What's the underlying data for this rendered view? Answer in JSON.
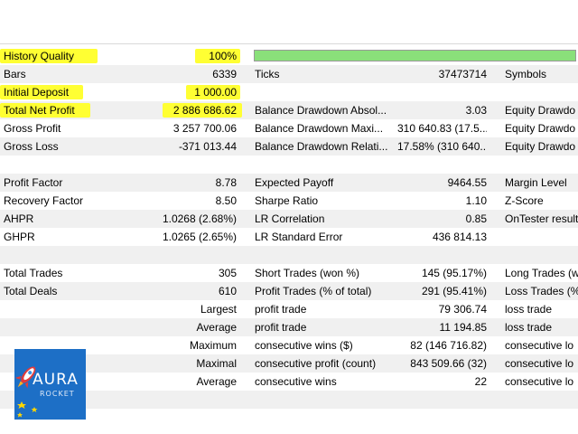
{
  "history_quality": {
    "label": "History Quality",
    "value": "100%",
    "progress_percent": 100
  },
  "rows": [
    {
      "c1": "Bars",
      "c2": "6339",
      "c3": "Ticks",
      "c4": "37473714",
      "c5": "Symbols"
    },
    {
      "c1": "Initial Deposit",
      "c2": "1 000.00",
      "c3": "",
      "c4": "",
      "c5": ""
    },
    {
      "c1": "Total Net Profit",
      "c2": "2 886 686.62",
      "c3": "Balance Drawdown Absol...",
      "c4": "3.03",
      "c5": "Equity Drawdo"
    },
    {
      "c1": "Gross Profit",
      "c2": "3 257 700.06",
      "c3": "Balance Drawdown Maxi...",
      "c4": "310 640.83 (17.5...",
      "c5": "Equity Drawdo"
    },
    {
      "c1": "Gross Loss",
      "c2": "-371 013.44",
      "c3": "Balance Drawdown Relati...",
      "c4": "17.58% (310 640...",
      "c5": "Equity Drawdo"
    },
    {
      "c1": "",
      "c2": "",
      "c3": "",
      "c4": "",
      "c5": ""
    },
    {
      "c1": "Profit Factor",
      "c2": "8.78",
      "c3": "Expected Payoff",
      "c4": "9464.55",
      "c5": "Margin Level"
    },
    {
      "c1": "Recovery Factor",
      "c2": "8.50",
      "c3": "Sharpe Ratio",
      "c4": "1.10",
      "c5": "Z-Score"
    },
    {
      "c1": "AHPR",
      "c2": "1.0268 (2.68%)",
      "c3": "LR Correlation",
      "c4": "0.85",
      "c5": "OnTester result"
    },
    {
      "c1": "GHPR",
      "c2": "1.0265 (2.65%)",
      "c3": "LR Standard Error",
      "c4": "436 814.13",
      "c5": ""
    },
    {
      "c1": "",
      "c2": "",
      "c3": "",
      "c4": "",
      "c5": ""
    },
    {
      "c1": "Total Trades",
      "c2": "305",
      "c3": "Short Trades (won %)",
      "c4": "145 (95.17%)",
      "c5": "Long Trades (w"
    },
    {
      "c1": "Total Deals",
      "c2": "610",
      "c3": "Profit Trades (% of total)",
      "c4": "291 (95.41%)",
      "c5": "Loss Trades (%"
    },
    {
      "c1": "",
      "c2": "Largest",
      "c3": "profit trade",
      "c4": "79 306.74",
      "c5": "loss trade"
    },
    {
      "c1": "",
      "c2": "Average",
      "c3": "profit trade",
      "c4": "11 194.85",
      "c5": "loss trade"
    },
    {
      "c1": "",
      "c2": "Maximum",
      "c3": "consecutive wins ($)",
      "c4": "82 (146 716.82)",
      "c5": "consecutive lo"
    },
    {
      "c1": "",
      "c2": "Maximal",
      "c3": "consecutive profit (count)",
      "c4": "843 509.66 (32)",
      "c5": "consecutive lo"
    },
    {
      "c1": "",
      "c2": "Average",
      "c3": "consecutive wins",
      "c4": "22",
      "c5": "consecutive lo"
    }
  ],
  "logo": {
    "line1": "AURA",
    "line2": "ROCKET",
    "icon": "rocket-icon"
  },
  "colors": {
    "highlight": "#ffff33",
    "progress_fill": "#8ae07a",
    "logo_bg": "#1d6fc6",
    "alt_row": "#f0f0f0"
  }
}
